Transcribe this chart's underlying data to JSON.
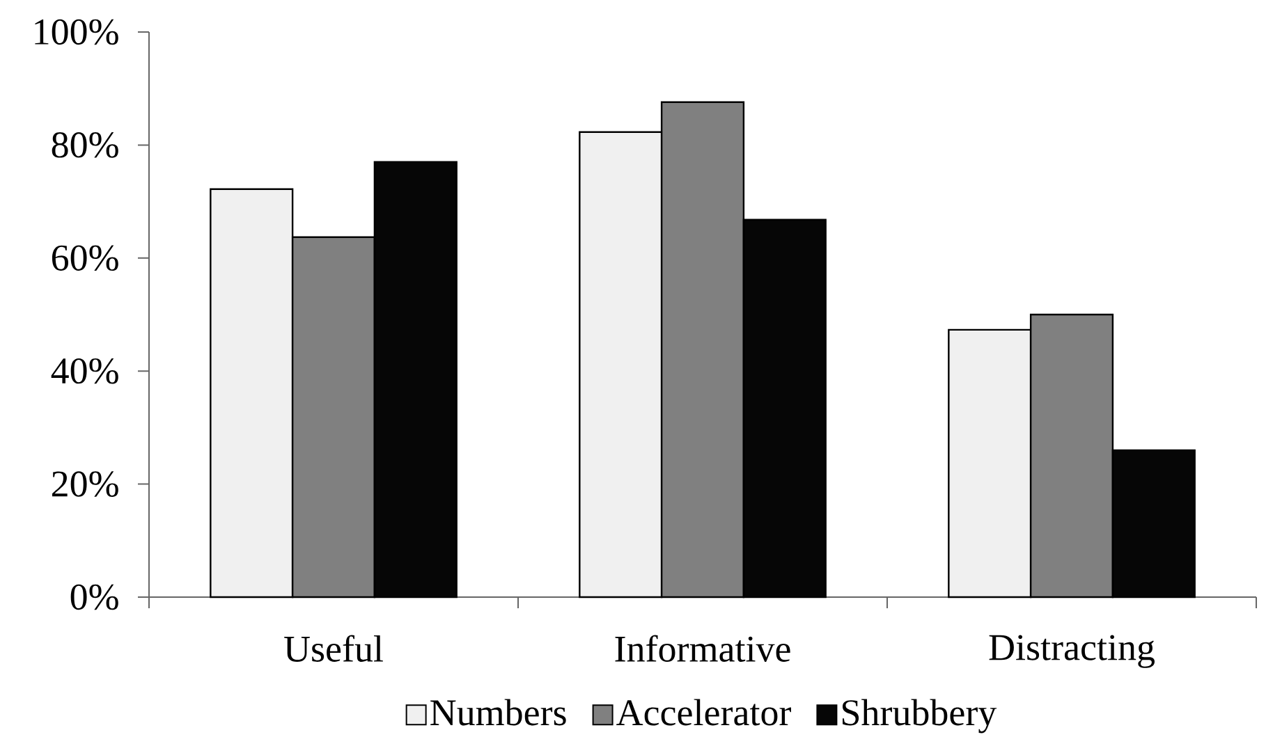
{
  "chart_data": {
    "type": "bar",
    "categories": [
      "Useful",
      "Informative",
      "Distracting"
    ],
    "series": [
      {
        "name": "Numbers",
        "color": "#f0f0f0",
        "values": [
          72.2,
          82.3,
          47.3
        ]
      },
      {
        "name": "Accelerator",
        "color": "#808080",
        "values": [
          63.7,
          87.6,
          50.0
        ]
      },
      {
        "name": "Shrubbery",
        "color": "#060606",
        "values": [
          77.0,
          66.8,
          26.0
        ]
      }
    ],
    "ylim": [
      0,
      100
    ],
    "yticks": [
      {
        "value": 0,
        "label": "0%"
      },
      {
        "value": 20,
        "label": "20%"
      },
      {
        "value": 40,
        "label": "40%"
      },
      {
        "value": 60,
        "label": "60%"
      },
      {
        "value": 80,
        "label": "80%"
      },
      {
        "value": 100,
        "label": "100%"
      }
    ],
    "grid": false,
    "legend": "bottom"
  }
}
